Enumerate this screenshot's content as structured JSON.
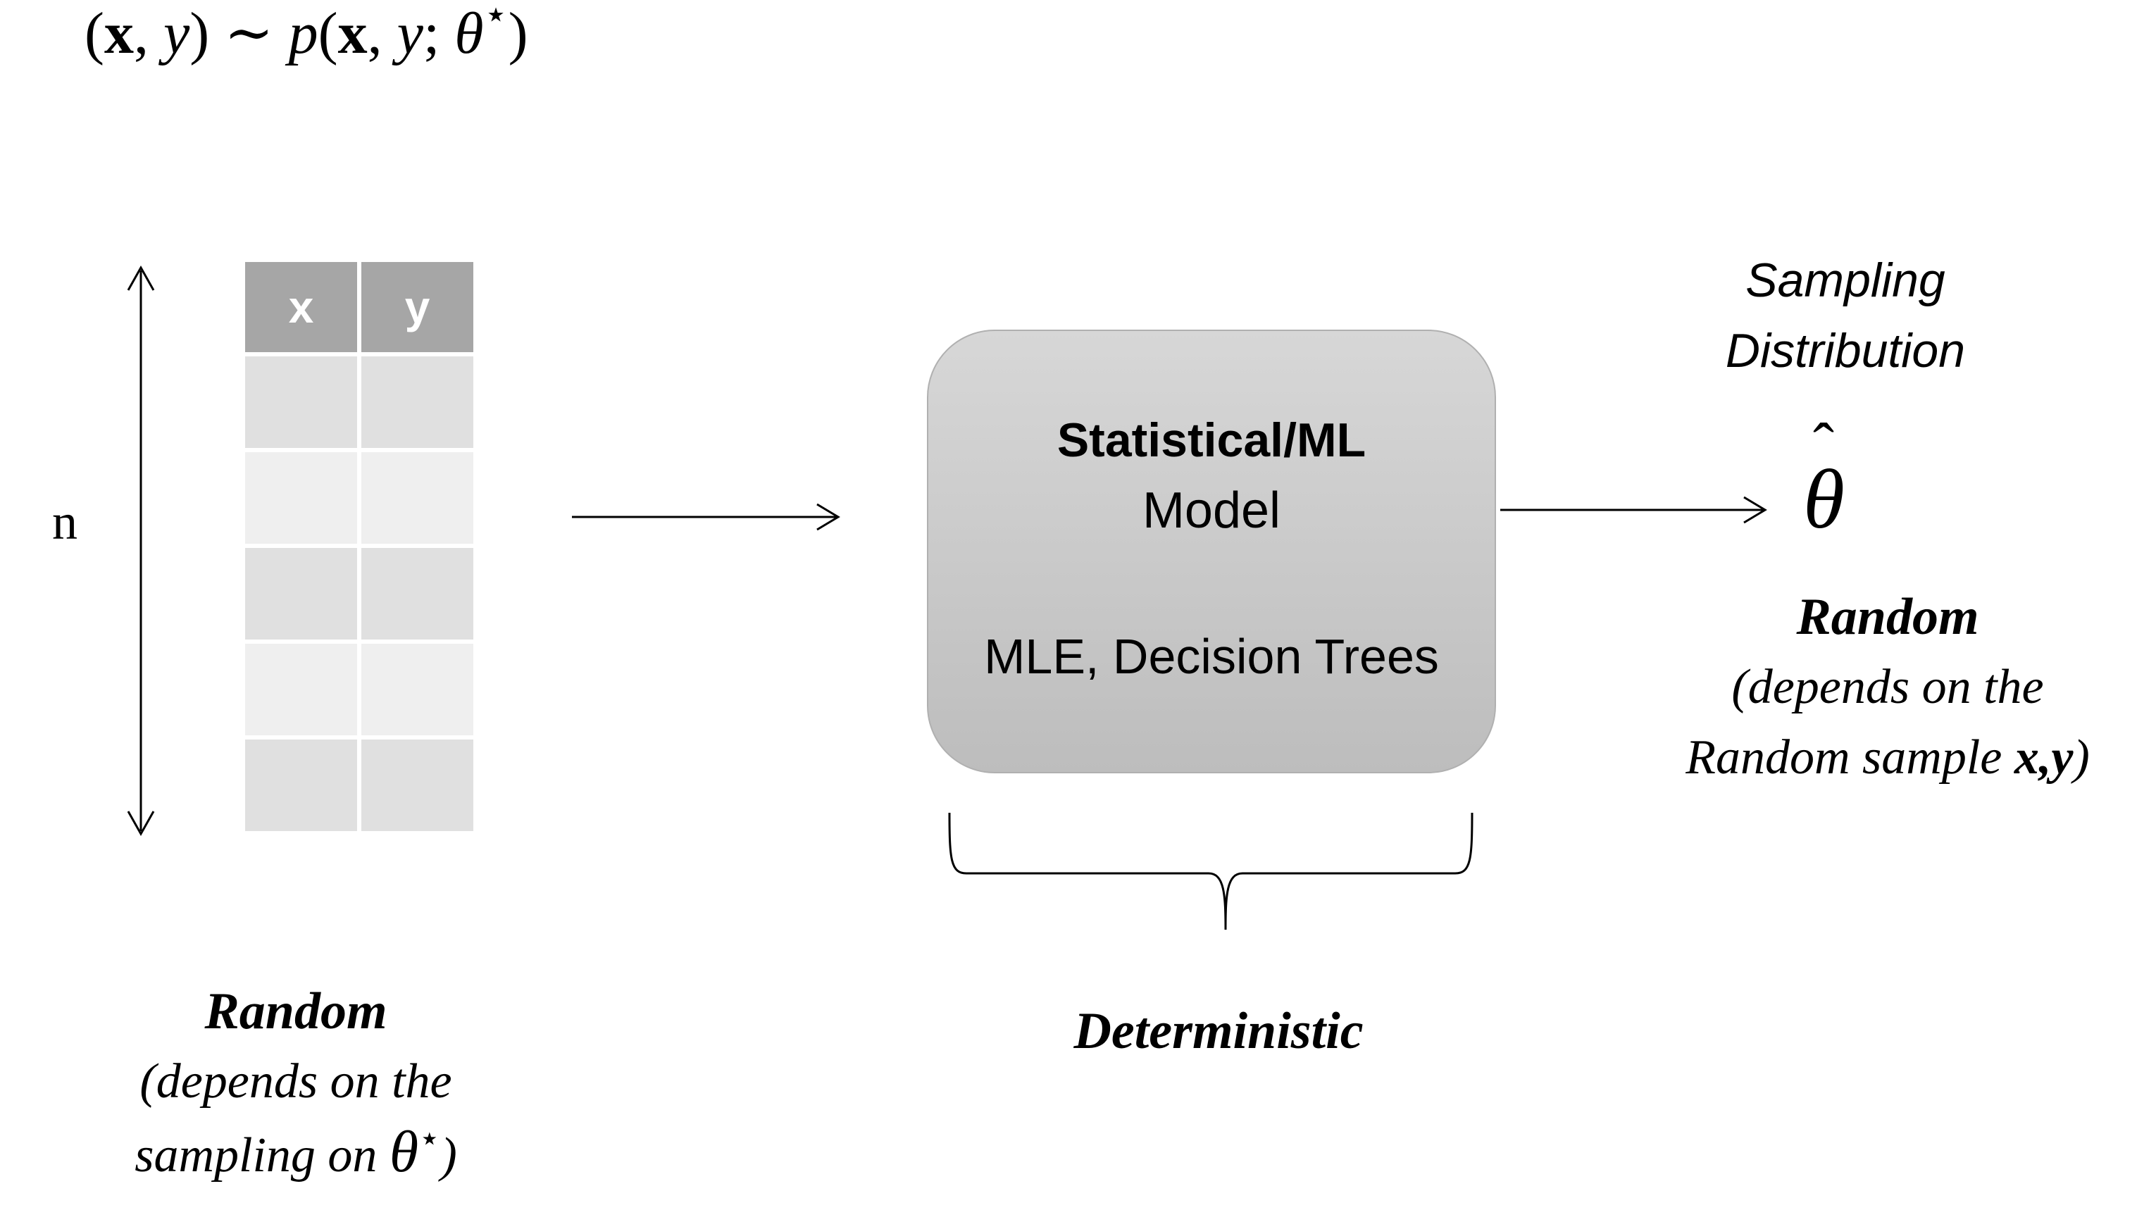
{
  "formula": {
    "lhs_open": "(",
    "x": "x",
    "comma": ", ",
    "y": "y",
    "lhs_close": ")",
    "tilde": " ∼ ",
    "p": "p",
    "rhs_open": "(",
    "rhs_x": "x",
    "rhs_comma": ", ",
    "rhs_y": "y",
    "semicolon": "; ",
    "theta": "θ",
    "star": "⋆",
    "rhs_close": ")"
  },
  "table": {
    "headers": [
      "x",
      "y"
    ],
    "rows": 5
  },
  "n_label": "n",
  "model_box": {
    "title": "Statistical/ML",
    "subtitle": "Model",
    "examples": "MLE, Decision Trees"
  },
  "sampling": {
    "line1": "Sampling",
    "line2": "Distribution"
  },
  "theta_hat": {
    "symbol": "θ",
    "hat": "ˆ"
  },
  "right_random": {
    "title": "Random",
    "line1": "(depends on the",
    "line2_prefix": "Random sample ",
    "line2_bold": "x,y",
    "line2_suffix": ")"
  },
  "left_random": {
    "title": "Random",
    "line1": "(depends on the",
    "line2_prefix": "sampling on ",
    "theta": "θ",
    "star": "⋆",
    "line2_suffix": ")"
  },
  "deterministic": "Deterministic"
}
